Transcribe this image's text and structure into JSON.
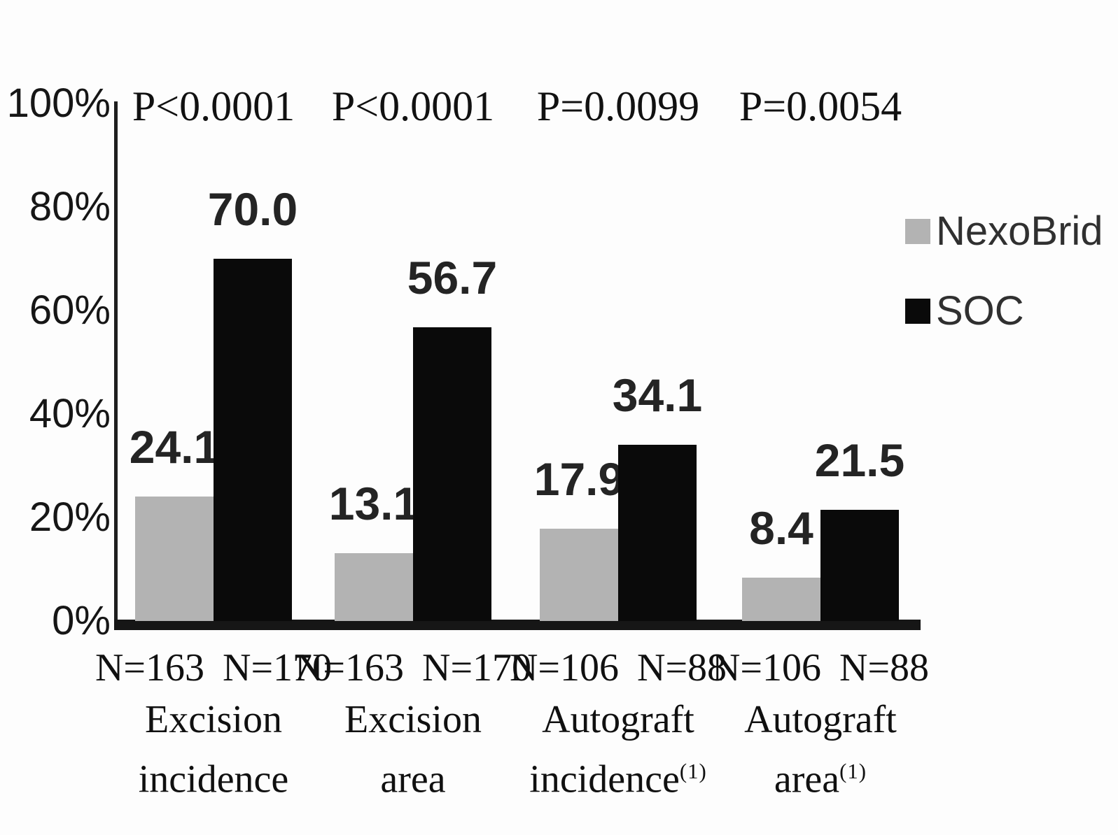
{
  "chart_data": {
    "type": "bar",
    "title": "",
    "xlabel": "",
    "ylabel": "",
    "ylim": [
      0,
      100
    ],
    "yticks": [
      "100%",
      "80%",
      "60%",
      "40%",
      "20%",
      "0%"
    ],
    "grid": false,
    "legend_position": "right",
    "categories": [
      "N=163 N=170 Excision incidence",
      "N=163 N=170 Excision area",
      "N=106 N=88 Autograft incidence(1)",
      "N=106 N=88 Autograft area(1)"
    ],
    "series": [
      {
        "name": "NexoBrid",
        "color": "#b3b3b3",
        "values": [
          24.1,
          13.1,
          17.9,
          8.4
        ]
      },
      {
        "name": "SOC",
        "color": "#0a0a0a",
        "values": [
          70.0,
          56.7,
          34.1,
          21.5
        ]
      }
    ],
    "groups": [
      {
        "p_value": "P<0.0001",
        "n_left": "N=163",
        "n_right": "N=170",
        "cat_line1": "Excision",
        "cat_line2": "incidence",
        "cat_sup": "",
        "bar_labels": {
          "nexobrid": "24.1",
          "soc": "70.0"
        }
      },
      {
        "p_value": "P<0.0001",
        "n_left": "N=163",
        "n_right": "N=170",
        "cat_line1": "Excision",
        "cat_line2": "area",
        "cat_sup": "",
        "bar_labels": {
          "nexobrid": "13.1",
          "soc": "56.7"
        }
      },
      {
        "p_value": "P=0.0099",
        "n_left": "N=106",
        "n_right": "N=88",
        "cat_line1": "Autograft",
        "cat_line2": "incidence",
        "cat_sup": "(1)",
        "bar_labels": {
          "nexobrid": "17.9",
          "soc": "34.1"
        }
      },
      {
        "p_value": "P=0.0054",
        "n_left": "N=106",
        "n_right": "N=88",
        "cat_line1": "Autograft",
        "cat_line2": "area",
        "cat_sup": "(1)",
        "bar_labels": {
          "nexobrid": "8.4",
          "soc": "21.5"
        }
      }
    ]
  },
  "legend": {
    "items": [
      {
        "label": "NexoBrid",
        "color": "#b3b3b3"
      },
      {
        "label": "SOC",
        "color": "#0a0a0a"
      }
    ]
  }
}
